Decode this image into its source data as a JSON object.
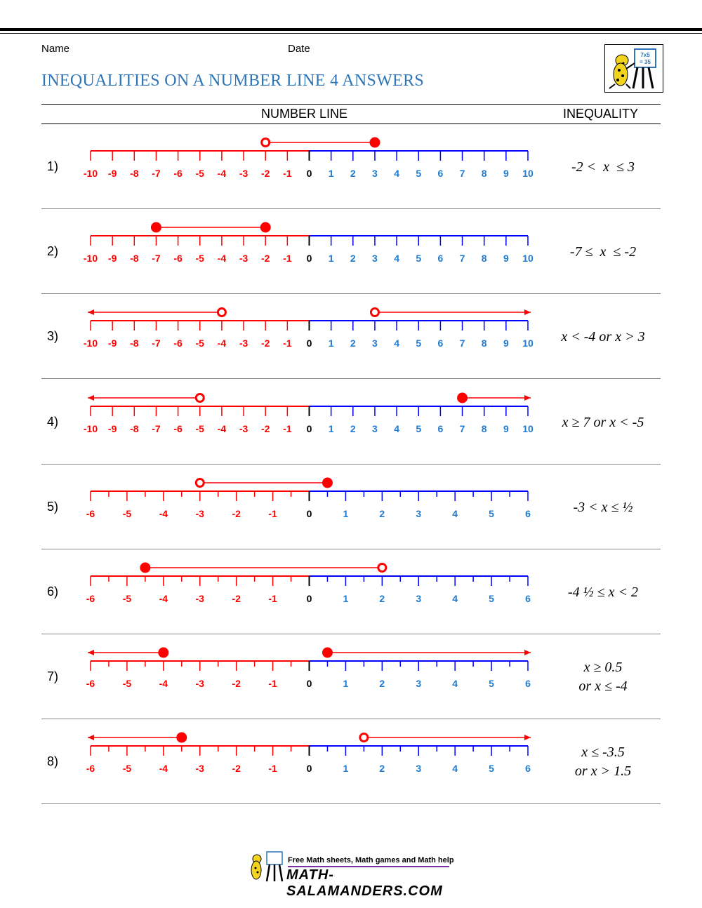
{
  "header": {
    "name_label": "Name",
    "date_label": "Date",
    "title": "INEQUALITIES ON A NUMBER LINE 4 ANSWERS",
    "logo_text": "7x5 = 35"
  },
  "columns": {
    "number_line": "NUMBER LINE",
    "inequality": "INEQUALITY"
  },
  "colors": {
    "negative": "#ff0000",
    "positive": "#0000ff",
    "positive_label": "#1f7bd1",
    "title": "#2e75b6"
  },
  "problems": [
    {
      "num": "1)",
      "range": [
        -10,
        10
      ],
      "lines": [
        "-2 <  x  ≤ 3"
      ],
      "marks": [
        {
          "type": "segment",
          "from": -2,
          "to": 3,
          "from_closed": false,
          "to_closed": true
        }
      ]
    },
    {
      "num": "2)",
      "range": [
        -10,
        10
      ],
      "lines": [
        "-7 ≤  x  ≤ -2"
      ],
      "marks": [
        {
          "type": "segment",
          "from": -7,
          "to": -2,
          "from_closed": true,
          "to_closed": true
        }
      ]
    },
    {
      "num": "3)",
      "range": [
        -10,
        10
      ],
      "lines": [
        "x < -4 or x > 3"
      ],
      "marks": [
        {
          "type": "ray",
          "at": -4,
          "dir": "left",
          "closed": false
        },
        {
          "type": "ray",
          "at": 3,
          "dir": "right",
          "closed": false
        }
      ]
    },
    {
      "num": "4)",
      "range": [
        -10,
        10
      ],
      "lines": [
        "x ≥ 7 or x < -5"
      ],
      "marks": [
        {
          "type": "ray",
          "at": -5,
          "dir": "left",
          "closed": false
        },
        {
          "type": "ray",
          "at": 7,
          "dir": "right",
          "closed": true
        }
      ]
    },
    {
      "num": "5)",
      "range": [
        -6,
        6
      ],
      "lines": [
        "-3 < x ≤ ½"
      ],
      "marks": [
        {
          "type": "segment",
          "from": -3,
          "to": 0.5,
          "from_closed": false,
          "to_closed": true
        }
      ]
    },
    {
      "num": "6)",
      "range": [
        -6,
        6
      ],
      "lines": [
        "-4 ½ ≤ x < 2"
      ],
      "marks": [
        {
          "type": "segment",
          "from": -4.5,
          "to": 2,
          "from_closed": true,
          "to_closed": false
        }
      ]
    },
    {
      "num": "7)",
      "range": [
        -6,
        6
      ],
      "lines": [
        "x ≥ 0.5",
        "or x ≤ -4"
      ],
      "marks": [
        {
          "type": "ray",
          "at": -4,
          "dir": "left",
          "closed": true
        },
        {
          "type": "ray",
          "at": 0.5,
          "dir": "right",
          "closed": true
        }
      ]
    },
    {
      "num": "8)",
      "range": [
        -6,
        6
      ],
      "lines": [
        "x ≤ -3.5",
        "or x > 1.5"
      ],
      "marks": [
        {
          "type": "ray",
          "at": -3.5,
          "dir": "left",
          "closed": true
        },
        {
          "type": "ray",
          "at": 1.5,
          "dir": "right",
          "closed": false
        }
      ]
    }
  ],
  "footer": {
    "tagline": "Free Math sheets, Math games and Math help",
    "brand": "MATH-SALAMANDERS.COM"
  }
}
